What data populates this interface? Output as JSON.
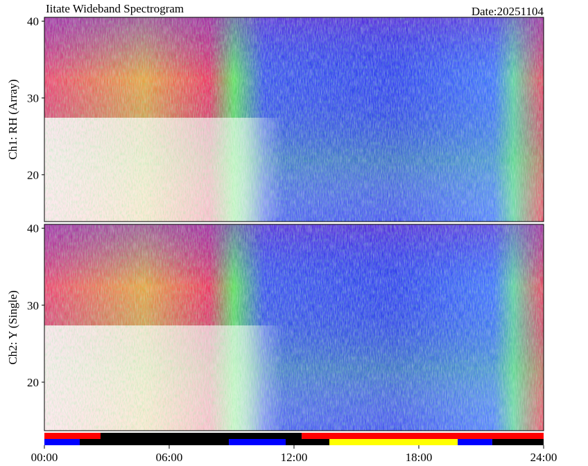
{
  "header": {
    "title": "Iitate Wideband Spectrogram",
    "date": "Date:20251104"
  },
  "chart_data": [
    {
      "type": "spectrogram",
      "ylabel": "Ch1: RH (Array)",
      "ylim": [
        13.9,
        40.5
      ],
      "yticks": [
        20,
        30,
        40
      ]
    },
    {
      "type": "spectrogram",
      "ylabel": "Ch2: Y (Single)",
      "ylim": [
        13.7,
        40.5
      ],
      "yticks": [
        20,
        30,
        40
      ],
      "xlim": [
        0,
        24
      ],
      "xticks": [
        {
          "value": 0,
          "label": "00:00"
        },
        {
          "value": 6,
          "label": "06:00"
        },
        {
          "value": 12,
          "label": "12:00"
        },
        {
          "value": 18,
          "label": "18:00"
        },
        {
          "value": 24,
          "label": "24:00"
        }
      ]
    }
  ],
  "status_bars": [
    [
      {
        "start": 0,
        "end": 2.7,
        "color": "#ff0000"
      },
      {
        "start": 2.7,
        "end": 12.37,
        "color": "#000000"
      },
      {
        "start": 12.37,
        "end": 24,
        "color": "#ff0000"
      }
    ],
    [
      {
        "start": 0,
        "end": 1.7,
        "color": "#0000ff"
      },
      {
        "start": 1.7,
        "end": 8.87,
        "color": "#000000"
      },
      {
        "start": 8.87,
        "end": 11.6,
        "color": "#0000ff"
      },
      {
        "start": 11.6,
        "end": 13.7,
        "color": "#000000"
      },
      {
        "start": 13.7,
        "end": 19.87,
        "color": "#ffff00"
      },
      {
        "start": 19.87,
        "end": 21.53,
        "color": "#0000ff"
      },
      {
        "start": 21.53,
        "end": 24,
        "color": "#000000"
      }
    ]
  ]
}
